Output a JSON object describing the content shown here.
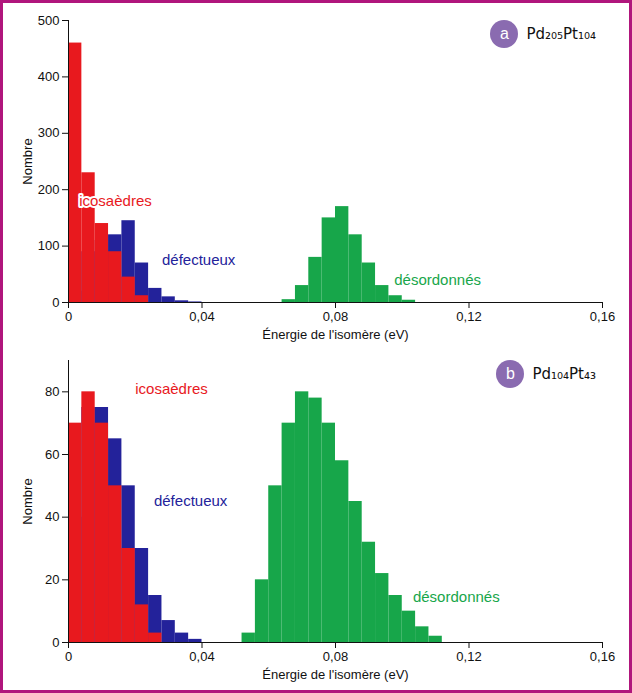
{
  "chart_data": [
    {
      "type": "histogram",
      "panel": "a",
      "title": "Pd₂₀₅Pt₁₀₄",
      "x_label": "Énergie de l'isomère (eV)",
      "y_label": "Nombre",
      "bins": [
        0,
        0.004,
        0.008,
        0.012,
        0.016,
        0.02,
        0.024,
        0.028,
        0.032,
        0.036,
        0.04,
        0.044,
        0.048,
        0.052,
        0.056,
        0.06,
        0.064,
        0.068,
        0.072,
        0.076,
        0.08,
        0.084,
        0.088,
        0.092,
        0.096,
        0.1,
        0.104,
        0.108,
        0.112,
        0.116,
        0.12,
        0.124,
        0.128,
        0.132,
        0.136,
        0.14,
        0.144,
        0.148,
        0.152,
        0.156,
        0.16
      ],
      "series": [
        {
          "name": "icosaèdres",
          "color": "#e8191e",
          "values": [
            460,
            230,
            140,
            90,
            45,
            12,
            0,
            0,
            0,
            0,
            0,
            0,
            0,
            0,
            0,
            0,
            0,
            0,
            0,
            0,
            0,
            0,
            0,
            0,
            0,
            0,
            0,
            0,
            0,
            0,
            0,
            0,
            0,
            0,
            0,
            0,
            0,
            0,
            0,
            0
          ]
        },
        {
          "name": "défectueux",
          "color": "#23229a",
          "values": [
            20,
            90,
            110,
            120,
            145,
            70,
            25,
            10,
            3,
            1,
            0,
            0,
            0,
            0,
            0,
            0,
            0,
            0,
            0,
            0,
            0,
            0,
            0,
            0,
            0,
            0,
            0,
            0,
            0,
            0,
            0,
            0,
            0,
            0,
            0,
            0,
            0,
            0,
            0,
            0
          ]
        },
        {
          "name": "désordonnés",
          "color": "#17a64a",
          "values": [
            0,
            0,
            0,
            0,
            0,
            0,
            0,
            0,
            0,
            0,
            0,
            0,
            0,
            0,
            0,
            0,
            5,
            30,
            80,
            150,
            170,
            120,
            70,
            30,
            12,
            4,
            0,
            0,
            0,
            0,
            0,
            0,
            0,
            0,
            0,
            0,
            0,
            0,
            0,
            0
          ]
        }
      ],
      "xlim": [
        0,
        0.16
      ],
      "xticks": [
        0,
        {
          "value": 0.04,
          "label": "0,04"
        },
        {
          "value": 0.08,
          "label": "0,08"
        },
        {
          "value": 0.12,
          "label": "0,12"
        },
        {
          "value": 0.16,
          "label": "0,16"
        }
      ],
      "ylim": [
        0,
        500
      ],
      "yticks": [
        0,
        100,
        200,
        300,
        400,
        500
      ],
      "grid": false
    },
    {
      "type": "histogram",
      "panel": "b",
      "title": "Pd₁₀₄Pt₄₃",
      "x_label": "Énergie de l'isomère (eV)",
      "y_label": "Nombre",
      "bins": [
        0,
        0.004,
        0.008,
        0.012,
        0.016,
        0.02,
        0.024,
        0.028,
        0.032,
        0.036,
        0.04,
        0.044,
        0.048,
        0.052,
        0.056,
        0.06,
        0.064,
        0.068,
        0.072,
        0.076,
        0.08,
        0.084,
        0.088,
        0.092,
        0.096,
        0.1,
        0.104,
        0.108,
        0.112,
        0.116,
        0.12,
        0.124,
        0.128,
        0.132,
        0.136,
        0.14,
        0.144,
        0.148,
        0.152,
        0.156,
        0.16
      ],
      "series": [
        {
          "name": "icosaèdres",
          "color": "#e8191e",
          "values": [
            70,
            80,
            70,
            50,
            30,
            12,
            3,
            0,
            0,
            0,
            0,
            0,
            0,
            0,
            0,
            0,
            0,
            0,
            0,
            0,
            0,
            0,
            0,
            0,
            0,
            0,
            0,
            0,
            0,
            0,
            0,
            0,
            0,
            0,
            0,
            0,
            0,
            0,
            0,
            0
          ]
        },
        {
          "name": "défectueux",
          "color": "#23229a",
          "values": [
            40,
            75,
            75,
            65,
            50,
            30,
            15,
            7,
            3,
            1,
            0,
            0,
            0,
            0,
            0,
            0,
            0,
            0,
            0,
            0,
            0,
            0,
            0,
            0,
            0,
            0,
            0,
            0,
            0,
            0,
            0,
            0,
            0,
            0,
            0,
            0,
            0,
            0,
            0,
            0
          ]
        },
        {
          "name": "désordonnés",
          "color": "#17a64a",
          "values": [
            0,
            0,
            0,
            0,
            0,
            0,
            0,
            0,
            0,
            0,
            0,
            0,
            0,
            3,
            20,
            50,
            70,
            80,
            78,
            70,
            58,
            45,
            32,
            22,
            15,
            10,
            5,
            2,
            0,
            0,
            0,
            0,
            0,
            0,
            0,
            0,
            0,
            0,
            0,
            0
          ]
        }
      ],
      "xlim": [
        0,
        0.16
      ],
      "xticks": [
        0,
        {
          "value": 0.04,
          "label": "0,04"
        },
        {
          "value": 0.08,
          "label": "0,08"
        },
        {
          "value": 0.12,
          "label": "0,12"
        },
        {
          "value": 0.16,
          "label": "0,16"
        }
      ],
      "ylim": [
        0,
        90
      ],
      "yticks": [
        0,
        20,
        40,
        60,
        80
      ],
      "grid": false
    }
  ]
}
